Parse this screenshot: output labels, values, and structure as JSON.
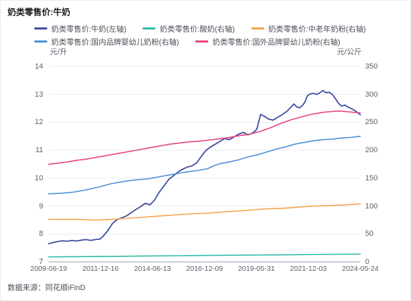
{
  "title": "奶类零售价:牛奶",
  "source": "数据来源：同花顺iFinD",
  "axes": {
    "left_unit": "元/升",
    "right_unit": "元/公斤",
    "left_ticks": [
      "14",
      "13",
      "12",
      "11",
      "10",
      "9",
      "8",
      "7"
    ],
    "right_ticks": [
      "350",
      "300",
      "250",
      "200",
      "150",
      "100",
      "50",
      "0"
    ],
    "x_ticks": [
      "2009-06-19",
      "2011-12-16",
      "2014-06-13",
      "2016-12-09",
      "2019-05-31",
      "2021-12-03",
      "2024-05-24"
    ]
  },
  "style_colors": {
    "grid": "#ebecf4",
    "axis_line": "#a9aec2",
    "tick_text": "#5c5c6b"
  },
  "chart_data": {
    "type": "line",
    "title": "奶类零售价:牛奶",
    "legend_position": "top",
    "grid": "horizontal-only",
    "x_range": [
      "2009-06-19",
      "2024-05-24"
    ],
    "x_note": "t = normalized position along time axis, 0 = 2009-06-19, 1 = 2024-05-24; ticks evenly spaced",
    "left_axis": {
      "label": "元/升",
      "min": 7,
      "max": 14
    },
    "right_axis": {
      "label": "元/公斤",
      "min": 0,
      "max": 350
    },
    "series": [
      {
        "name": "奶类零售价:牛奶(左轴)",
        "key": "milk",
        "axis": "left",
        "color": "#3d4c9e",
        "points": [
          [
            0.0,
            7.65
          ],
          [
            0.015,
            7.7
          ],
          [
            0.03,
            7.73
          ],
          [
            0.045,
            7.76
          ],
          [
            0.06,
            7.74
          ],
          [
            0.075,
            7.77
          ],
          [
            0.09,
            7.75
          ],
          [
            0.105,
            7.78
          ],
          [
            0.12,
            7.8
          ],
          [
            0.135,
            7.77
          ],
          [
            0.15,
            7.8
          ],
          [
            0.165,
            7.82
          ],
          [
            0.175,
            7.92
          ],
          [
            0.19,
            8.12
          ],
          [
            0.205,
            8.38
          ],
          [
            0.22,
            8.52
          ],
          [
            0.235,
            8.58
          ],
          [
            0.25,
            8.65
          ],
          [
            0.265,
            8.76
          ],
          [
            0.28,
            8.88
          ],
          [
            0.295,
            8.98
          ],
          [
            0.31,
            9.1
          ],
          [
            0.325,
            9.04
          ],
          [
            0.34,
            9.22
          ],
          [
            0.355,
            9.5
          ],
          [
            0.37,
            9.72
          ],
          [
            0.385,
            9.95
          ],
          [
            0.4,
            10.08
          ],
          [
            0.415,
            10.22
          ],
          [
            0.43,
            10.32
          ],
          [
            0.445,
            10.4
          ],
          [
            0.46,
            10.44
          ],
          [
            0.475,
            10.55
          ],
          [
            0.49,
            10.78
          ],
          [
            0.505,
            11.0
          ],
          [
            0.52,
            11.12
          ],
          [
            0.535,
            11.22
          ],
          [
            0.55,
            11.32
          ],
          [
            0.565,
            11.42
          ],
          [
            0.58,
            11.38
          ],
          [
            0.595,
            11.48
          ],
          [
            0.61,
            11.58
          ],
          [
            0.625,
            11.64
          ],
          [
            0.64,
            11.55
          ],
          [
            0.655,
            11.62
          ],
          [
            0.668,
            11.75
          ],
          [
            0.68,
            12.28
          ],
          [
            0.692,
            12.22
          ],
          [
            0.705,
            12.12
          ],
          [
            0.72,
            12.08
          ],
          [
            0.735,
            12.18
          ],
          [
            0.75,
            12.28
          ],
          [
            0.765,
            12.4
          ],
          [
            0.778,
            12.55
          ],
          [
            0.787,
            12.66
          ],
          [
            0.796,
            12.55
          ],
          [
            0.805,
            12.52
          ],
          [
            0.814,
            12.6
          ],
          [
            0.822,
            12.72
          ],
          [
            0.83,
            12.95
          ],
          [
            0.84,
            13.02
          ],
          [
            0.85,
            13.04
          ],
          [
            0.86,
            13.0
          ],
          [
            0.87,
            13.06
          ],
          [
            0.88,
            13.14
          ],
          [
            0.89,
            13.06
          ],
          [
            0.9,
            13.08
          ],
          [
            0.91,
            13.0
          ],
          [
            0.92,
            12.85
          ],
          [
            0.93,
            12.68
          ],
          [
            0.94,
            12.58
          ],
          [
            0.95,
            12.62
          ],
          [
            0.96,
            12.55
          ],
          [
            0.97,
            12.5
          ],
          [
            0.98,
            12.44
          ],
          [
            0.99,
            12.36
          ],
          [
            1.0,
            12.27
          ]
        ]
      },
      {
        "name": "奶类零售价:酸奶(右轴)",
        "key": "yogurt",
        "axis": "right",
        "color": "#2bbca8",
        "points": [
          [
            0.0,
            9
          ],
          [
            0.1,
            9.5
          ],
          [
            0.2,
            10
          ],
          [
            0.3,
            10.5
          ],
          [
            0.4,
            11
          ],
          [
            0.5,
            11.5
          ],
          [
            0.6,
            12
          ],
          [
            0.7,
            12.5
          ],
          [
            0.8,
            13
          ],
          [
            0.9,
            13.5
          ],
          [
            1.0,
            14
          ]
        ]
      },
      {
        "name": "奶类零售价:中老年奶粉(右轴)",
        "key": "middle-aged-milk-powder",
        "axis": "right",
        "color": "#f6a44c",
        "points": [
          [
            0.0,
            76
          ],
          [
            0.05,
            76
          ],
          [
            0.1,
            76
          ],
          [
            0.15,
            75
          ],
          [
            0.2,
            76
          ],
          [
            0.25,
            78
          ],
          [
            0.3,
            80
          ],
          [
            0.35,
            82
          ],
          [
            0.4,
            84
          ],
          [
            0.45,
            86
          ],
          [
            0.5,
            87
          ],
          [
            0.55,
            89
          ],
          [
            0.6,
            91
          ],
          [
            0.65,
            93
          ],
          [
            0.7,
            95
          ],
          [
            0.75,
            96
          ],
          [
            0.8,
            98
          ],
          [
            0.85,
            100
          ],
          [
            0.9,
            101
          ],
          [
            0.95,
            102
          ],
          [
            1.0,
            104
          ]
        ]
      },
      {
        "name": "奶类零售价:国内品牌婴幼儿奶粉(右轴)",
        "key": "domestic-infant-formula",
        "axis": "right",
        "color": "#4b90d8",
        "points": [
          [
            0.0,
            122
          ],
          [
            0.04,
            123
          ],
          [
            0.08,
            125
          ],
          [
            0.12,
            129
          ],
          [
            0.16,
            134
          ],
          [
            0.2,
            140
          ],
          [
            0.24,
            144
          ],
          [
            0.28,
            147
          ],
          [
            0.32,
            149
          ],
          [
            0.36,
            153
          ],
          [
            0.4,
            157
          ],
          [
            0.44,
            161
          ],
          [
            0.48,
            164
          ],
          [
            0.51,
            167
          ],
          [
            0.53,
            172
          ],
          [
            0.55,
            176
          ],
          [
            0.58,
            179
          ],
          [
            0.61,
            183
          ],
          [
            0.64,
            188
          ],
          [
            0.67,
            192
          ],
          [
            0.7,
            197
          ],
          [
            0.73,
            202
          ],
          [
            0.76,
            206
          ],
          [
            0.79,
            211
          ],
          [
            0.82,
            214
          ],
          [
            0.85,
            217
          ],
          [
            0.88,
            219
          ],
          [
            0.91,
            220
          ],
          [
            0.94,
            222
          ],
          [
            0.97,
            223
          ],
          [
            1.0,
            225
          ]
        ]
      },
      {
        "name": "奶类零售价:国外品牌婴幼儿奶粉(右轴)",
        "key": "foreign-infant-formula",
        "axis": "right",
        "color": "#e5417f",
        "points": [
          [
            0.0,
            175
          ],
          [
            0.03,
            177
          ],
          [
            0.06,
            179
          ],
          [
            0.09,
            182
          ],
          [
            0.12,
            184
          ],
          [
            0.15,
            187
          ],
          [
            0.18,
            190
          ],
          [
            0.21,
            193
          ],
          [
            0.24,
            196
          ],
          [
            0.27,
            199
          ],
          [
            0.3,
            202
          ],
          [
            0.33,
            205
          ],
          [
            0.36,
            208
          ],
          [
            0.39,
            211
          ],
          [
            0.42,
            213
          ],
          [
            0.45,
            215
          ],
          [
            0.48,
            216
          ],
          [
            0.51,
            218
          ],
          [
            0.54,
            220
          ],
          [
            0.57,
            222
          ],
          [
            0.6,
            225
          ],
          [
            0.62,
            227
          ],
          [
            0.64,
            228
          ],
          [
            0.66,
            231
          ],
          [
            0.68,
            234
          ],
          [
            0.7,
            238
          ],
          [
            0.72,
            242
          ],
          [
            0.74,
            247
          ],
          [
            0.76,
            251
          ],
          [
            0.78,
            255
          ],
          [
            0.8,
            258
          ],
          [
            0.82,
            261
          ],
          [
            0.84,
            264
          ],
          [
            0.86,
            266
          ],
          [
            0.88,
            268
          ],
          [
            0.9,
            269
          ],
          [
            0.92,
            270
          ],
          [
            0.94,
            270
          ],
          [
            0.96,
            269
          ],
          [
            0.98,
            268
          ],
          [
            1.0,
            267
          ]
        ]
      }
    ]
  }
}
